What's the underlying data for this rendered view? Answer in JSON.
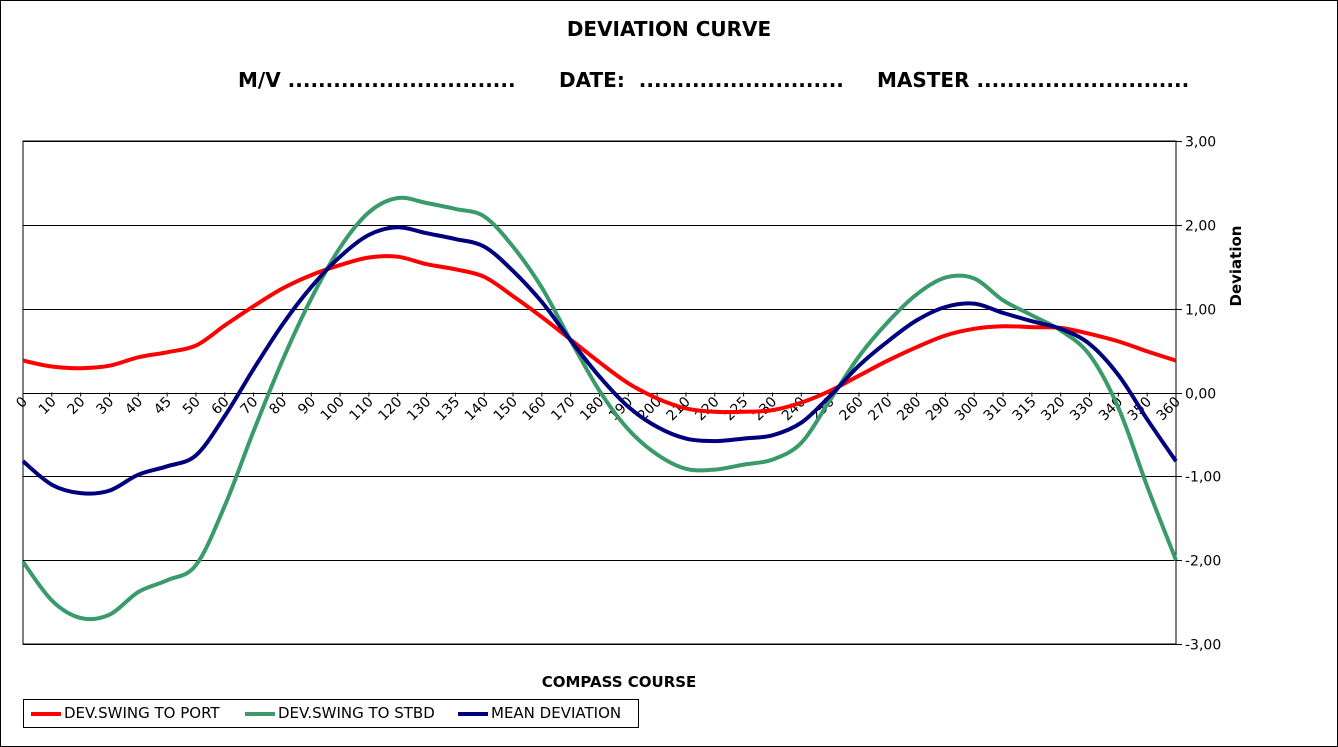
{
  "header": {
    "title": "DEVIATION CURVE",
    "mv": "M/V ..............................",
    "date": "DATE:  ...........................",
    "master": "MASTER ............................"
  },
  "colors": {
    "port": "#ff0000",
    "stbd": "#3a9a6a",
    "mean": "#00007f",
    "grid": "#000000"
  },
  "chart_data": {
    "type": "line",
    "title": "DEVIATION CURVE",
    "xlabel": "COMPASS COURSE",
    "ylabel": "Deviation",
    "ylim": [
      -3,
      3
    ],
    "yticks": [
      "3,00",
      "2,00",
      "1,00",
      "0,00",
      "-1,00",
      "-2,00",
      "-3,00"
    ],
    "grid": "horizontal",
    "legend": "bottom-left",
    "categories": [
      "0",
      "10",
      "20",
      "30",
      "40",
      "45",
      "50",
      "60",
      "70",
      "80",
      "90",
      "100",
      "110",
      "120",
      "130",
      "135",
      "140",
      "150",
      "160",
      "170",
      "180",
      "190",
      "200",
      "210",
      "220",
      "225",
      "230",
      "240",
      "250",
      "260",
      "270",
      "280",
      "290",
      "300",
      "310",
      "315",
      "320",
      "330",
      "340",
      "350",
      "360"
    ],
    "series": [
      {
        "name": "DEV.SWING TO PORT",
        "values": [
          0.38,
          0.31,
          0.29,
          0.32,
          0.42,
          0.48,
          0.56,
          0.8,
          1.03,
          1.24,
          1.4,
          1.52,
          1.61,
          1.62,
          1.53,
          1.47,
          1.38,
          1.15,
          0.9,
          0.63,
          0.36,
          0.11,
          -0.07,
          -0.19,
          -0.23,
          -0.23,
          -0.21,
          -0.12,
          0.02,
          0.2,
          0.38,
          0.54,
          0.68,
          0.76,
          0.79,
          0.78,
          0.77,
          0.7,
          0.61,
          0.49,
          0.38
        ]
      },
      {
        "name": "DEV.SWING TO STBD",
        "values": [
          -2.02,
          -2.48,
          -2.69,
          -2.65,
          -2.38,
          -2.24,
          -2.06,
          -1.35,
          -0.46,
          0.38,
          1.12,
          1.73,
          2.15,
          2.32,
          2.26,
          2.19,
          2.1,
          1.74,
          1.25,
          0.62,
          0.02,
          -0.44,
          -0.74,
          -0.91,
          -0.92,
          -0.86,
          -0.8,
          -0.6,
          -0.09,
          0.43,
          0.84,
          1.17,
          1.37,
          1.36,
          1.1,
          0.92,
          0.74,
          0.45,
          -0.18,
          -1.12,
          -2.0
        ]
      },
      {
        "name": "MEAN DEVIATION",
        "values": [
          -0.82,
          -1.1,
          -1.2,
          -1.17,
          -0.98,
          -0.88,
          -0.75,
          -0.28,
          0.28,
          0.81,
          1.26,
          1.62,
          1.88,
          1.97,
          1.9,
          1.83,
          1.74,
          1.45,
          1.08,
          0.62,
          0.19,
          -0.17,
          -0.41,
          -0.55,
          -0.58,
          -0.55,
          -0.51,
          -0.36,
          -0.04,
          0.32,
          0.61,
          0.86,
          1.02,
          1.06,
          0.95,
          0.85,
          0.76,
          0.58,
          0.21,
          -0.32,
          -0.82
        ]
      }
    ]
  }
}
